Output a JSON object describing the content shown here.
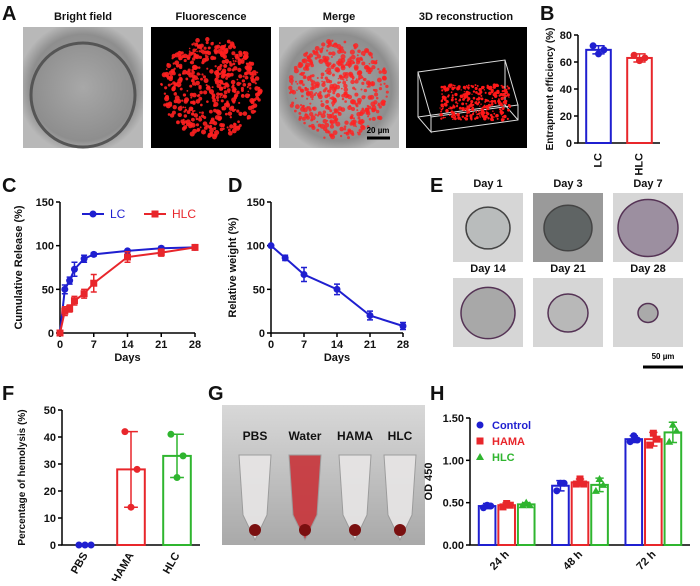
{
  "panel_labels": [
    "A",
    "B",
    "C",
    "D",
    "E",
    "F",
    "G",
    "H"
  ],
  "images": {
    "a_titles": [
      "Bright field",
      "Fluorescence",
      "Merge",
      "3D reconstruction"
    ],
    "a_scale": "20 µm",
    "e_titles": [
      "Day 1",
      "Day 3",
      "Day 7",
      "Day 14",
      "Day 21",
      "Day 28"
    ],
    "e_scale": "50 µm",
    "g_labels": [
      "PBS",
      "Water",
      "HAMA",
      "HLC"
    ]
  },
  "chart_data": [
    {
      "type": "bar",
      "ylabel": "Entrapment efficiency (%)",
      "categories": [
        "LC",
        "HLC"
      ],
      "values": [
        69,
        63
      ],
      "errors": [
        3,
        3
      ],
      "points": [
        [
          72,
          66,
          69
        ],
        [
          65,
          61,
          63
        ]
      ],
      "colors": [
        "#1f1fd0",
        "#e8262b"
      ],
      "ylim": [
        0,
        80
      ],
      "yticks": [
        0,
        20,
        40,
        60,
        80
      ]
    },
    {
      "type": "line",
      "ylabel": "Cumulative Release (%)",
      "xlabel": "Days",
      "xlim": [
        0,
        28
      ],
      "xticks": [
        0,
        7,
        14,
        21,
        28
      ],
      "ylim": [
        0,
        150
      ],
      "yticks": [
        0,
        50,
        100,
        150
      ],
      "legend": "top",
      "series": [
        {
          "name": "LC",
          "color": "#1f1fd0",
          "marker": "circle",
          "x": [
            0,
            1,
            2,
            3,
            5,
            7,
            14,
            21,
            28
          ],
          "values": [
            0,
            50,
            60,
            73,
            85,
            90,
            94,
            97,
            98
          ],
          "errors": [
            0,
            5,
            4,
            8,
            4,
            2,
            1,
            2,
            1
          ]
        },
        {
          "name": "HLC",
          "color": "#e8262b",
          "marker": "square",
          "x": [
            0,
            1,
            2,
            3,
            5,
            7,
            14,
            21,
            28
          ],
          "values": [
            0,
            25,
            28,
            37,
            45,
            57,
            87,
            92,
            98
          ],
          "errors": [
            0,
            5,
            4,
            5,
            5,
            10,
            6,
            4,
            2
          ]
        }
      ]
    },
    {
      "type": "line",
      "ylabel": "Relative weight (%)",
      "xlabel": "Days",
      "xlim": [
        0,
        28
      ],
      "xticks": [
        0,
        7,
        14,
        21,
        28
      ],
      "ylim": [
        0,
        150
      ],
      "yticks": [
        0,
        50,
        100,
        150
      ],
      "series": [
        {
          "color": "#1f1fd0",
          "marker": "circle",
          "x": [
            0,
            3,
            7,
            14,
            21,
            28
          ],
          "values": [
            100,
            86,
            67,
            50,
            20,
            8
          ],
          "errors": [
            1,
            3,
            8,
            6,
            5,
            4
          ]
        }
      ]
    },
    {
      "type": "bar",
      "ylabel": "Percentage of hemolysis (%)",
      "categories": [
        "PBS",
        "HAMA",
        "HLC"
      ],
      "values": [
        0,
        28,
        33
      ],
      "errors": [
        0,
        14,
        8
      ],
      "points": [
        [
          0,
          0,
          0
        ],
        [
          42,
          14,
          28
        ],
        [
          41,
          25,
          33
        ]
      ],
      "colors": [
        "#1f1fd0",
        "#e8262b",
        "#2fb52f"
      ],
      "ylim": [
        0,
        50
      ],
      "yticks": [
        0,
        10,
        20,
        30,
        40,
        50
      ]
    },
    {
      "type": "bar",
      "ylabel": "OD 450",
      "categories": [
        "24 h",
        "48 h",
        "72 h"
      ],
      "ylim": [
        0,
        1.5
      ],
      "yticks": [
        {
          "value": 0,
          "label": "0.00"
        },
        {
          "value": 0.5,
          "label": "0.50"
        },
        {
          "value": 1,
          "label": "1.00"
        },
        {
          "value": 1.5,
          "label": "1.50"
        }
      ],
      "legend": "upper left",
      "series": [
        {
          "name": "Control",
          "color": "#1f1fd0",
          "marker": "circle",
          "values": [
            0.46,
            0.7,
            1.25
          ],
          "errors": [
            0.03,
            0.06,
            0.04
          ],
          "points": [
            [
              0.44,
              0.47,
              0.46
            ],
            [
              0.64,
              0.73,
              0.73
            ],
            [
              1.22,
              1.29,
              1.24
            ]
          ]
        },
        {
          "name": "HAMA",
          "color": "#e8262b",
          "marker": "square",
          "values": [
            0.47,
            0.74,
            1.25
          ],
          "errors": [
            0.03,
            0.04,
            0.08
          ],
          "points": [
            [
              0.45,
              0.49,
              0.47
            ],
            [
              0.72,
              0.78,
              0.72
            ],
            [
              1.18,
              1.32,
              1.25
            ]
          ]
        },
        {
          "name": "HLC",
          "color": "#2fb52f",
          "marker": "triangle",
          "values": [
            0.48,
            0.71,
            1.33
          ],
          "errors": [
            0.02,
            0.08,
            0.12
          ],
          "points": [
            [
              0.47,
              0.5,
              0.47
            ],
            [
              0.64,
              0.78,
              0.71
            ],
            [
              1.22,
              1.42,
              1.35
            ]
          ]
        }
      ]
    }
  ]
}
